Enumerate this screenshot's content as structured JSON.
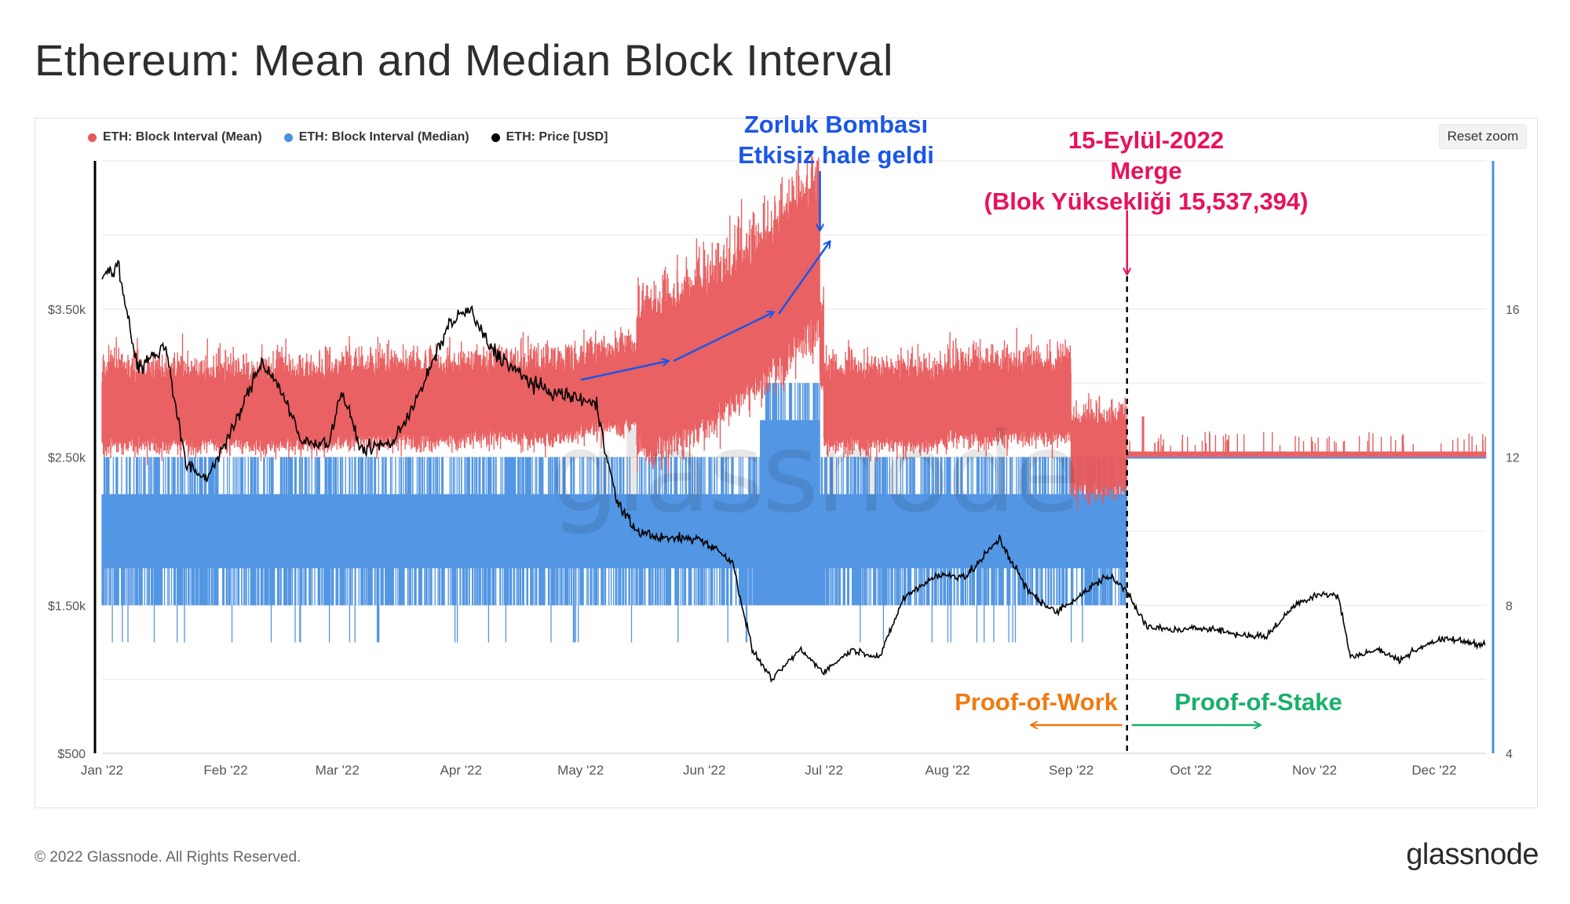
{
  "title": "Ethereum: Mean and Median Block Interval",
  "reset_zoom_label": "Reset zoom",
  "footer": {
    "copyright": "© 2022 Glassnode. All Rights Reserved.",
    "logo": "glassnode"
  },
  "watermark": "glassnode",
  "colors": {
    "mean": "#e8585a",
    "median": "#4a90e2",
    "price": "#000000",
    "bomb_annotation": "#1a56e8",
    "merge_annotation": "#e8125c",
    "pow": "#f07a10",
    "pos": "#17b06a"
  },
  "annotations": {
    "difficulty_bomb": [
      "Zorluk Bombası",
      "Etkisiz hale geldi"
    ],
    "merge": [
      "15-Eylül-2022",
      "Merge",
      "(Blok Yüksekliği 15,537,394)"
    ],
    "pow": "Proof-of-Work",
    "pos": "Proof-of-Stake"
  },
  "chart_data": {
    "type": "line",
    "title": "Ethereum: Mean and Median Block Interval",
    "x_ticks": [
      "Jan '22",
      "Feb '22",
      "Mar '22",
      "Apr '22",
      "May '22",
      "Jun '22",
      "Jul '22",
      "Aug '22",
      "Sep '22",
      "Oct '22",
      "Nov '22",
      "Dec '22"
    ],
    "y_left_ticks": [
      "$500",
      "$1.50k",
      "$2.50k",
      "$3.50k"
    ],
    "y_left_range": [
      500,
      4500
    ],
    "y_right_ticks": [
      "4",
      "8",
      "12",
      "16"
    ],
    "y_right_range": [
      4,
      20
    ],
    "grid": true,
    "legend_position": "top-left",
    "series": [
      {
        "name": "ETH: Block Interval (Mean)",
        "axis": "right",
        "monthly_values": [
          {
            "x": "Jan '22",
            "y": 13.3
          },
          {
            "x": "Feb '22",
            "y": 13.3
          },
          {
            "x": "Mar '22",
            "y": 13.4
          },
          {
            "x": "Apr '22",
            "y": 13.5
          },
          {
            "x": "May '22",
            "y": 13.8
          },
          {
            "x": "Jun '22",
            "y": 15.0
          },
          {
            "x": "Jul '22",
            "y": 13.3
          },
          {
            "x": "Aug '22",
            "y": 13.5
          },
          {
            "x": "Sep '22",
            "y": 12.05
          },
          {
            "x": "Oct '22",
            "y": 12.05
          },
          {
            "x": "Nov '22",
            "y": 12.05
          },
          {
            "x": "Dec '22",
            "y": 12.05
          }
        ]
      },
      {
        "name": "ETH: Block Interval (Median)",
        "axis": "right",
        "monthly_values": [
          {
            "x": "Jan '22",
            "y": 10.0
          },
          {
            "x": "Feb '22",
            "y": 10.0
          },
          {
            "x": "Mar '22",
            "y": 10.0
          },
          {
            "x": "Apr '22",
            "y": 10.0
          },
          {
            "x": "May '22",
            "y": 10.0
          },
          {
            "x": "Jun '22",
            "y": 10.5
          },
          {
            "x": "Jul '22",
            "y": 10.0
          },
          {
            "x": "Aug '22",
            "y": 10.0
          },
          {
            "x": "Sep '22",
            "y": 12.0
          },
          {
            "x": "Oct '22",
            "y": 12.0
          },
          {
            "x": "Nov '22",
            "y": 12.0
          },
          {
            "x": "Dec '22",
            "y": 12.0
          }
        ]
      },
      {
        "name": "ETH: Price [USD]",
        "axis": "left",
        "values": [
          {
            "x": "2022-01-01",
            "y": 3700
          },
          {
            "x": "2022-01-05",
            "y": 3800
          },
          {
            "x": "2022-01-10",
            "y": 3100
          },
          {
            "x": "2022-01-17",
            "y": 3250
          },
          {
            "x": "2022-01-22",
            "y": 2450
          },
          {
            "x": "2022-01-27",
            "y": 2350
          },
          {
            "x": "2022-02-03",
            "y": 2700
          },
          {
            "x": "2022-02-10",
            "y": 3150
          },
          {
            "x": "2022-02-15",
            "y": 2950
          },
          {
            "x": "2022-02-20",
            "y": 2600
          },
          {
            "x": "2022-02-27",
            "y": 2600
          },
          {
            "x": "2022-03-02",
            "y": 2950
          },
          {
            "x": "2022-03-07",
            "y": 2550
          },
          {
            "x": "2022-03-15",
            "y": 2600
          },
          {
            "x": "2022-03-22",
            "y": 2950
          },
          {
            "x": "2022-03-29",
            "y": 3400
          },
          {
            "x": "2022-04-03",
            "y": 3500
          },
          {
            "x": "2022-04-08",
            "y": 3250
          },
          {
            "x": "2022-04-16",
            "y": 3050
          },
          {
            "x": "2022-04-22",
            "y": 2950
          },
          {
            "x": "2022-04-30",
            "y": 2900
          },
          {
            "x": "2022-05-05",
            "y": 2850
          },
          {
            "x": "2022-05-10",
            "y": 2200
          },
          {
            "x": "2022-05-15",
            "y": 2000
          },
          {
            "x": "2022-05-22",
            "y": 1950
          },
          {
            "x": "2022-05-31",
            "y": 1950
          },
          {
            "x": "2022-06-08",
            "y": 1800
          },
          {
            "x": "2022-06-13",
            "y": 1200
          },
          {
            "x": "2022-06-18",
            "y": 1000
          },
          {
            "x": "2022-06-25",
            "y": 1200
          },
          {
            "x": "2022-07-01",
            "y": 1050
          },
          {
            "x": "2022-07-08",
            "y": 1200
          },
          {
            "x": "2022-07-15",
            "y": 1150
          },
          {
            "x": "2022-07-21",
            "y": 1550
          },
          {
            "x": "2022-07-29",
            "y": 1700
          },
          {
            "x": "2022-08-06",
            "y": 1700
          },
          {
            "x": "2022-08-14",
            "y": 1950
          },
          {
            "x": "2022-08-21",
            "y": 1600
          },
          {
            "x": "2022-08-28",
            "y": 1450
          },
          {
            "x": "2022-09-05",
            "y": 1600
          },
          {
            "x": "2022-09-10",
            "y": 1700
          },
          {
            "x": "2022-09-15",
            "y": 1600
          },
          {
            "x": "2022-09-20",
            "y": 1350
          },
          {
            "x": "2022-09-28",
            "y": 1330
          },
          {
            "x": "2022-10-05",
            "y": 1350
          },
          {
            "x": "2022-10-13",
            "y": 1300
          },
          {
            "x": "2022-10-20",
            "y": 1290
          },
          {
            "x": "2022-10-27",
            "y": 1500
          },
          {
            "x": "2022-11-02",
            "y": 1580
          },
          {
            "x": "2022-11-07",
            "y": 1560
          },
          {
            "x": "2022-11-10",
            "y": 1150
          },
          {
            "x": "2022-11-17",
            "y": 1200
          },
          {
            "x": "2022-11-22",
            "y": 1130
          },
          {
            "x": "2022-11-30",
            "y": 1250
          },
          {
            "x": "2022-12-05",
            "y": 1270
          },
          {
            "x": "2022-12-12",
            "y": 1240
          }
        ]
      }
    ],
    "events": [
      {
        "date": "2022-06-30",
        "label": "Zorluk Bombası Etkisiz hale geldi"
      },
      {
        "date": "2022-09-15",
        "label": "Merge"
      }
    ]
  }
}
